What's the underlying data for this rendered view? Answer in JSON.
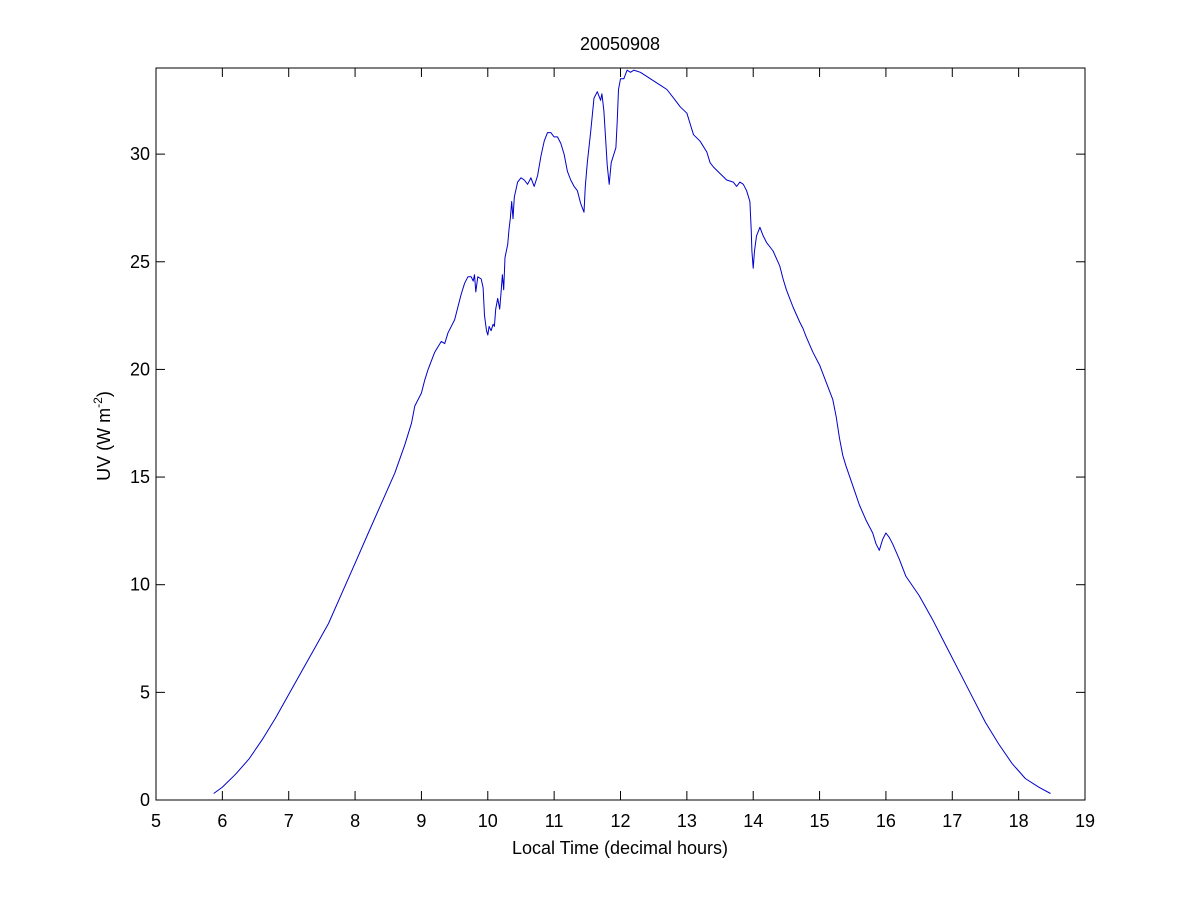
{
  "chart_data": {
    "type": "line",
    "title": "20050908",
    "xlabel": "Local Time (decimal hours)",
    "ylabel": {
      "base": "UV (W m",
      "sup": "-2",
      "end": ")"
    },
    "xlim": [
      5,
      19
    ],
    "ylim": [
      0,
      34
    ],
    "xticks": [
      5,
      6,
      7,
      8,
      9,
      10,
      11,
      12,
      13,
      14,
      15,
      16,
      17,
      18,
      19
    ],
    "yticks": [
      0,
      5,
      10,
      15,
      20,
      25,
      30
    ],
    "grid": false,
    "series": [
      {
        "color": "#0000cc",
        "points": [
          [
            5.87,
            0.3
          ],
          [
            6.0,
            0.6
          ],
          [
            6.2,
            1.2
          ],
          [
            6.4,
            1.9
          ],
          [
            6.6,
            2.8
          ],
          [
            6.8,
            3.8
          ],
          [
            7.0,
            4.9
          ],
          [
            7.2,
            6.0
          ],
          [
            7.4,
            7.1
          ],
          [
            7.6,
            8.2
          ],
          [
            7.8,
            9.6
          ],
          [
            8.0,
            11.0
          ],
          [
            8.2,
            12.4
          ],
          [
            8.4,
            13.8
          ],
          [
            8.6,
            15.2
          ],
          [
            8.75,
            16.5
          ],
          [
            8.85,
            17.5
          ],
          [
            8.9,
            18.3
          ],
          [
            9.0,
            18.9
          ],
          [
            9.05,
            19.5
          ],
          [
            9.1,
            20.0
          ],
          [
            9.2,
            20.8
          ],
          [
            9.3,
            21.3
          ],
          [
            9.35,
            21.2
          ],
          [
            9.4,
            21.7
          ],
          [
            9.5,
            22.3
          ],
          [
            9.55,
            22.9
          ],
          [
            9.6,
            23.5
          ],
          [
            9.65,
            24.0
          ],
          [
            9.7,
            24.3
          ],
          [
            9.75,
            24.3
          ],
          [
            9.78,
            24.1
          ],
          [
            9.8,
            24.4
          ],
          [
            9.82,
            23.6
          ],
          [
            9.85,
            24.3
          ],
          [
            9.9,
            24.2
          ],
          [
            9.93,
            23.8
          ],
          [
            9.95,
            22.5
          ],
          [
            9.98,
            21.8
          ],
          [
            10.0,
            21.6
          ],
          [
            10.02,
            22.0
          ],
          [
            10.05,
            21.8
          ],
          [
            10.08,
            22.1
          ],
          [
            10.1,
            22.0
          ],
          [
            10.12,
            22.8
          ],
          [
            10.15,
            23.3
          ],
          [
            10.18,
            22.8
          ],
          [
            10.2,
            23.6
          ],
          [
            10.22,
            24.4
          ],
          [
            10.24,
            23.7
          ],
          [
            10.26,
            25.2
          ],
          [
            10.3,
            25.8
          ],
          [
            10.32,
            26.5
          ],
          [
            10.34,
            27.0
          ],
          [
            10.36,
            27.8
          ],
          [
            10.38,
            27.0
          ],
          [
            10.4,
            28.0
          ],
          [
            10.45,
            28.7
          ],
          [
            10.5,
            28.9
          ],
          [
            10.55,
            28.8
          ],
          [
            10.6,
            28.6
          ],
          [
            10.65,
            28.9
          ],
          [
            10.7,
            28.5
          ],
          [
            10.75,
            29.0
          ],
          [
            10.8,
            29.9
          ],
          [
            10.85,
            30.6
          ],
          [
            10.9,
            31.0
          ],
          [
            10.95,
            31.0
          ],
          [
            11.0,
            30.8
          ],
          [
            11.05,
            30.8
          ],
          [
            11.1,
            30.5
          ],
          [
            11.15,
            30.0
          ],
          [
            11.2,
            29.2
          ],
          [
            11.25,
            28.8
          ],
          [
            11.3,
            28.5
          ],
          [
            11.35,
            28.3
          ],
          [
            11.4,
            27.7
          ],
          [
            11.45,
            27.3
          ],
          [
            11.47,
            28.5
          ],
          [
            11.5,
            29.6
          ],
          [
            11.55,
            31.0
          ],
          [
            11.6,
            32.6
          ],
          [
            11.65,
            32.9
          ],
          [
            11.7,
            32.5
          ],
          [
            11.72,
            32.8
          ],
          [
            11.75,
            32.0
          ],
          [
            11.78,
            30.5
          ],
          [
            11.8,
            29.5
          ],
          [
            11.83,
            28.6
          ],
          [
            11.86,
            29.6
          ],
          [
            11.9,
            30.0
          ],
          [
            11.93,
            30.3
          ],
          [
            11.95,
            31.5
          ],
          [
            11.97,
            33.0
          ],
          [
            12.0,
            33.5
          ],
          [
            12.05,
            33.5
          ],
          [
            12.1,
            33.9
          ],
          [
            12.15,
            33.8
          ],
          [
            12.2,
            33.9
          ],
          [
            12.3,
            33.8
          ],
          [
            12.4,
            33.6
          ],
          [
            12.5,
            33.4
          ],
          [
            12.6,
            33.2
          ],
          [
            12.7,
            33.0
          ],
          [
            12.8,
            32.6
          ],
          [
            12.9,
            32.2
          ],
          [
            13.0,
            31.9
          ],
          [
            13.05,
            31.4
          ],
          [
            13.1,
            30.9
          ],
          [
            13.2,
            30.6
          ],
          [
            13.3,
            30.1
          ],
          [
            13.35,
            29.6
          ],
          [
            13.4,
            29.4
          ],
          [
            13.5,
            29.1
          ],
          [
            13.6,
            28.8
          ],
          [
            13.7,
            28.7
          ],
          [
            13.75,
            28.5
          ],
          [
            13.8,
            28.7
          ],
          [
            13.85,
            28.6
          ],
          [
            13.9,
            28.3
          ],
          [
            13.95,
            27.8
          ],
          [
            13.97,
            26.5
          ],
          [
            13.98,
            25.5
          ],
          [
            14.0,
            24.7
          ],
          [
            14.02,
            25.5
          ],
          [
            14.05,
            26.2
          ],
          [
            14.1,
            26.6
          ],
          [
            14.15,
            26.2
          ],
          [
            14.2,
            25.9
          ],
          [
            14.3,
            25.5
          ],
          [
            14.4,
            24.8
          ],
          [
            14.45,
            24.2
          ],
          [
            14.5,
            23.7
          ],
          [
            14.55,
            23.3
          ],
          [
            14.6,
            22.9
          ],
          [
            14.7,
            22.2
          ],
          [
            14.75,
            21.9
          ],
          [
            14.8,
            21.5
          ],
          [
            14.9,
            20.8
          ],
          [
            15.0,
            20.2
          ],
          [
            15.1,
            19.4
          ],
          [
            15.2,
            18.6
          ],
          [
            15.25,
            17.8
          ],
          [
            15.3,
            16.8
          ],
          [
            15.35,
            16.0
          ],
          [
            15.4,
            15.5
          ],
          [
            15.5,
            14.6
          ],
          [
            15.6,
            13.7
          ],
          [
            15.7,
            13.0
          ],
          [
            15.8,
            12.4
          ],
          [
            15.85,
            11.9
          ],
          [
            15.9,
            11.6
          ],
          [
            15.95,
            12.1
          ],
          [
            16.0,
            12.4
          ],
          [
            16.05,
            12.2
          ],
          [
            16.1,
            11.9
          ],
          [
            16.2,
            11.2
          ],
          [
            16.3,
            10.4
          ],
          [
            16.5,
            9.5
          ],
          [
            16.7,
            8.4
          ],
          [
            16.9,
            7.2
          ],
          [
            17.1,
            6.0
          ],
          [
            17.3,
            4.8
          ],
          [
            17.5,
            3.6
          ],
          [
            17.7,
            2.6
          ],
          [
            17.9,
            1.7
          ],
          [
            18.1,
            1.0
          ],
          [
            18.3,
            0.6
          ],
          [
            18.48,
            0.3
          ]
        ]
      }
    ]
  }
}
